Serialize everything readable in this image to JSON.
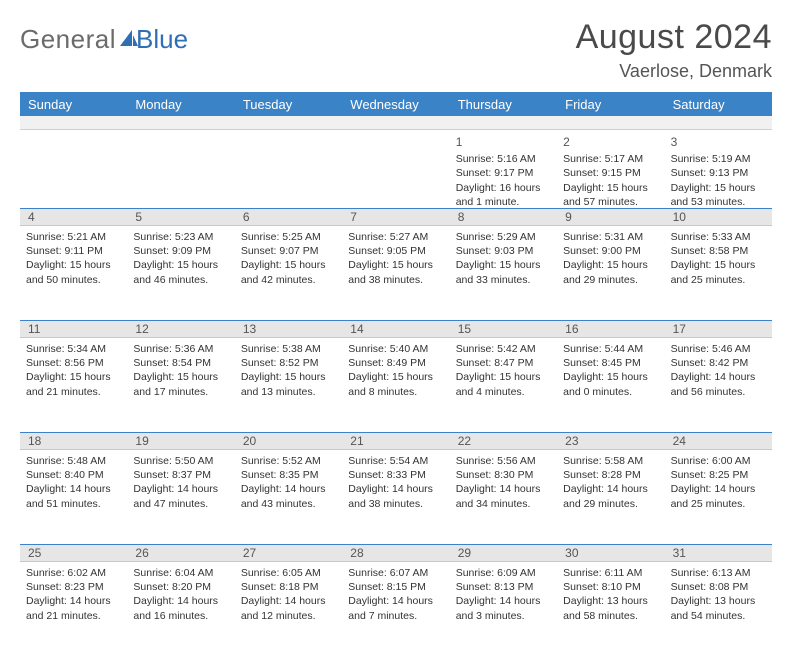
{
  "logo": {
    "part1": "General",
    "part2": "Blue"
  },
  "title": "August 2024",
  "location": "Vaerlose, Denmark",
  "colors": {
    "header_bg": "#3b83c7",
    "header_text": "#ffffff",
    "date_bar_bg": "#e6e6e6",
    "date_bar_border_top": "#3b83c7",
    "text": "#333333",
    "logo_gray": "#6b6b6b",
    "logo_blue": "#2f6fb5"
  },
  "day_names": [
    "Sunday",
    "Monday",
    "Tuesday",
    "Wednesday",
    "Thursday",
    "Friday",
    "Saturday"
  ],
  "weeks": [
    {
      "dates": [
        "",
        "",
        "",
        "",
        "1",
        "2",
        "3"
      ],
      "cells": [
        null,
        null,
        null,
        null,
        {
          "sunrise": "Sunrise: 5:16 AM",
          "sunset": "Sunset: 9:17 PM",
          "daylight": "Daylight: 16 hours and 1 minute."
        },
        {
          "sunrise": "Sunrise: 5:17 AM",
          "sunset": "Sunset: 9:15 PM",
          "daylight": "Daylight: 15 hours and 57 minutes."
        },
        {
          "sunrise": "Sunrise: 5:19 AM",
          "sunset": "Sunset: 9:13 PM",
          "daylight": "Daylight: 15 hours and 53 minutes."
        }
      ]
    },
    {
      "dates": [
        "4",
        "5",
        "6",
        "7",
        "8",
        "9",
        "10"
      ],
      "cells": [
        {
          "sunrise": "Sunrise: 5:21 AM",
          "sunset": "Sunset: 9:11 PM",
          "daylight": "Daylight: 15 hours and 50 minutes."
        },
        {
          "sunrise": "Sunrise: 5:23 AM",
          "sunset": "Sunset: 9:09 PM",
          "daylight": "Daylight: 15 hours and 46 minutes."
        },
        {
          "sunrise": "Sunrise: 5:25 AM",
          "sunset": "Sunset: 9:07 PM",
          "daylight": "Daylight: 15 hours and 42 minutes."
        },
        {
          "sunrise": "Sunrise: 5:27 AM",
          "sunset": "Sunset: 9:05 PM",
          "daylight": "Daylight: 15 hours and 38 minutes."
        },
        {
          "sunrise": "Sunrise: 5:29 AM",
          "sunset": "Sunset: 9:03 PM",
          "daylight": "Daylight: 15 hours and 33 minutes."
        },
        {
          "sunrise": "Sunrise: 5:31 AM",
          "sunset": "Sunset: 9:00 PM",
          "daylight": "Daylight: 15 hours and 29 minutes."
        },
        {
          "sunrise": "Sunrise: 5:33 AM",
          "sunset": "Sunset: 8:58 PM",
          "daylight": "Daylight: 15 hours and 25 minutes."
        }
      ]
    },
    {
      "dates": [
        "11",
        "12",
        "13",
        "14",
        "15",
        "16",
        "17"
      ],
      "cells": [
        {
          "sunrise": "Sunrise: 5:34 AM",
          "sunset": "Sunset: 8:56 PM",
          "daylight": "Daylight: 15 hours and 21 minutes."
        },
        {
          "sunrise": "Sunrise: 5:36 AM",
          "sunset": "Sunset: 8:54 PM",
          "daylight": "Daylight: 15 hours and 17 minutes."
        },
        {
          "sunrise": "Sunrise: 5:38 AM",
          "sunset": "Sunset: 8:52 PM",
          "daylight": "Daylight: 15 hours and 13 minutes."
        },
        {
          "sunrise": "Sunrise: 5:40 AM",
          "sunset": "Sunset: 8:49 PM",
          "daylight": "Daylight: 15 hours and 8 minutes."
        },
        {
          "sunrise": "Sunrise: 5:42 AM",
          "sunset": "Sunset: 8:47 PM",
          "daylight": "Daylight: 15 hours and 4 minutes."
        },
        {
          "sunrise": "Sunrise: 5:44 AM",
          "sunset": "Sunset: 8:45 PM",
          "daylight": "Daylight: 15 hours and 0 minutes."
        },
        {
          "sunrise": "Sunrise: 5:46 AM",
          "sunset": "Sunset: 8:42 PM",
          "daylight": "Daylight: 14 hours and 56 minutes."
        }
      ]
    },
    {
      "dates": [
        "18",
        "19",
        "20",
        "21",
        "22",
        "23",
        "24"
      ],
      "cells": [
        {
          "sunrise": "Sunrise: 5:48 AM",
          "sunset": "Sunset: 8:40 PM",
          "daylight": "Daylight: 14 hours and 51 minutes."
        },
        {
          "sunrise": "Sunrise: 5:50 AM",
          "sunset": "Sunset: 8:37 PM",
          "daylight": "Daylight: 14 hours and 47 minutes."
        },
        {
          "sunrise": "Sunrise: 5:52 AM",
          "sunset": "Sunset: 8:35 PM",
          "daylight": "Daylight: 14 hours and 43 minutes."
        },
        {
          "sunrise": "Sunrise: 5:54 AM",
          "sunset": "Sunset: 8:33 PM",
          "daylight": "Daylight: 14 hours and 38 minutes."
        },
        {
          "sunrise": "Sunrise: 5:56 AM",
          "sunset": "Sunset: 8:30 PM",
          "daylight": "Daylight: 14 hours and 34 minutes."
        },
        {
          "sunrise": "Sunrise: 5:58 AM",
          "sunset": "Sunset: 8:28 PM",
          "daylight": "Daylight: 14 hours and 29 minutes."
        },
        {
          "sunrise": "Sunrise: 6:00 AM",
          "sunset": "Sunset: 8:25 PM",
          "daylight": "Daylight: 14 hours and 25 minutes."
        }
      ]
    },
    {
      "dates": [
        "25",
        "26",
        "27",
        "28",
        "29",
        "30",
        "31"
      ],
      "cells": [
        {
          "sunrise": "Sunrise: 6:02 AM",
          "sunset": "Sunset: 8:23 PM",
          "daylight": "Daylight: 14 hours and 21 minutes."
        },
        {
          "sunrise": "Sunrise: 6:04 AM",
          "sunset": "Sunset: 8:20 PM",
          "daylight": "Daylight: 14 hours and 16 minutes."
        },
        {
          "sunrise": "Sunrise: 6:05 AM",
          "sunset": "Sunset: 8:18 PM",
          "daylight": "Daylight: 14 hours and 12 minutes."
        },
        {
          "sunrise": "Sunrise: 6:07 AM",
          "sunset": "Sunset: 8:15 PM",
          "daylight": "Daylight: 14 hours and 7 minutes."
        },
        {
          "sunrise": "Sunrise: 6:09 AM",
          "sunset": "Sunset: 8:13 PM",
          "daylight": "Daylight: 14 hours and 3 minutes."
        },
        {
          "sunrise": "Sunrise: 6:11 AM",
          "sunset": "Sunset: 8:10 PM",
          "daylight": "Daylight: 13 hours and 58 minutes."
        },
        {
          "sunrise": "Sunrise: 6:13 AM",
          "sunset": "Sunset: 8:08 PM",
          "daylight": "Daylight: 13 hours and 54 minutes."
        }
      ]
    }
  ]
}
